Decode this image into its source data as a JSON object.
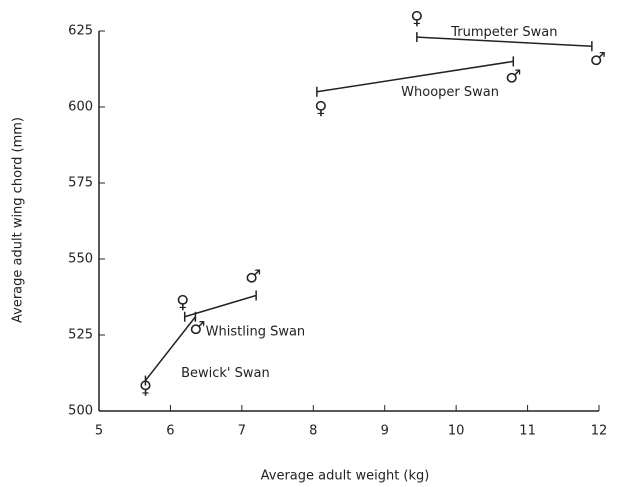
{
  "chart_data": {
    "type": "line",
    "x_label": "Average adult weight (kg)",
    "y_label": "Average adult wing chord (mm)",
    "xlim": [
      5,
      12
    ],
    "xticks": [
      5,
      6,
      7,
      8,
      9,
      10,
      11,
      12
    ],
    "ylim": [
      500,
      625
    ],
    "yticks": [
      500,
      525,
      550,
      575,
      600,
      625
    ],
    "sex_symbols": [
      "♀",
      "♂"
    ],
    "series": [
      {
        "name": "Trumpeter Swan",
        "color": "#222222",
        "x": [
          9.45,
          11.9
        ],
        "values": [
          623,
          620
        ]
      },
      {
        "name": "Whooper Swan",
        "color": "#222222",
        "x": [
          8.05,
          10.8
        ],
        "values": [
          605,
          615
        ]
      },
      {
        "name": "Whistling Swan",
        "color": "#222222",
        "x": [
          6.2,
          7.2
        ],
        "values": [
          531,
          538
        ]
      },
      {
        "name": "Bewick' Swan",
        "color": "#222222",
        "x": [
          5.65,
          6.35
        ],
        "values": [
          510,
          531
        ]
      }
    ]
  }
}
